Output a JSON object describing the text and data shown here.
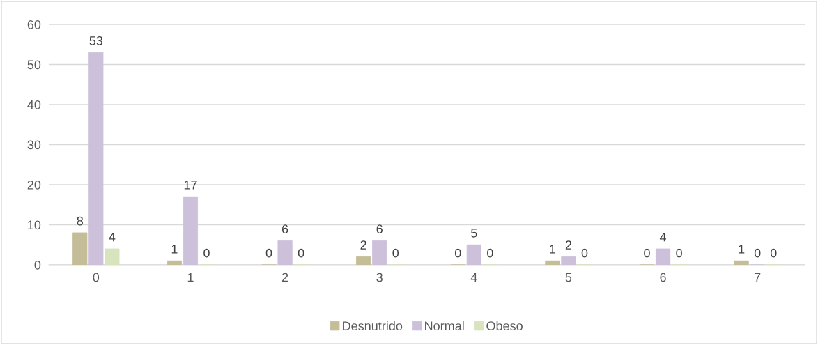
{
  "chart_data": {
    "type": "bar",
    "categories": [
      "0",
      "1",
      "2",
      "3",
      "4",
      "5",
      "6",
      "7"
    ],
    "series": [
      {
        "name": "Desnutrido",
        "color": "#c4bd97",
        "values": [
          8,
          1,
          0,
          2,
          0,
          1,
          0,
          1
        ]
      },
      {
        "name": "Normal",
        "color": "#ccc0da",
        "values": [
          53,
          17,
          6,
          6,
          5,
          2,
          4,
          0
        ]
      },
      {
        "name": "Obeso",
        "color": "#d7e4bd",
        "values": [
          4,
          0,
          0,
          0,
          0,
          0,
          0,
          0
        ]
      }
    ],
    "ylim": [
      0,
      60
    ],
    "yticks": [
      0,
      10,
      20,
      30,
      40,
      50,
      60
    ],
    "grid": "y",
    "legend": "bottom",
    "data_labels": true
  }
}
